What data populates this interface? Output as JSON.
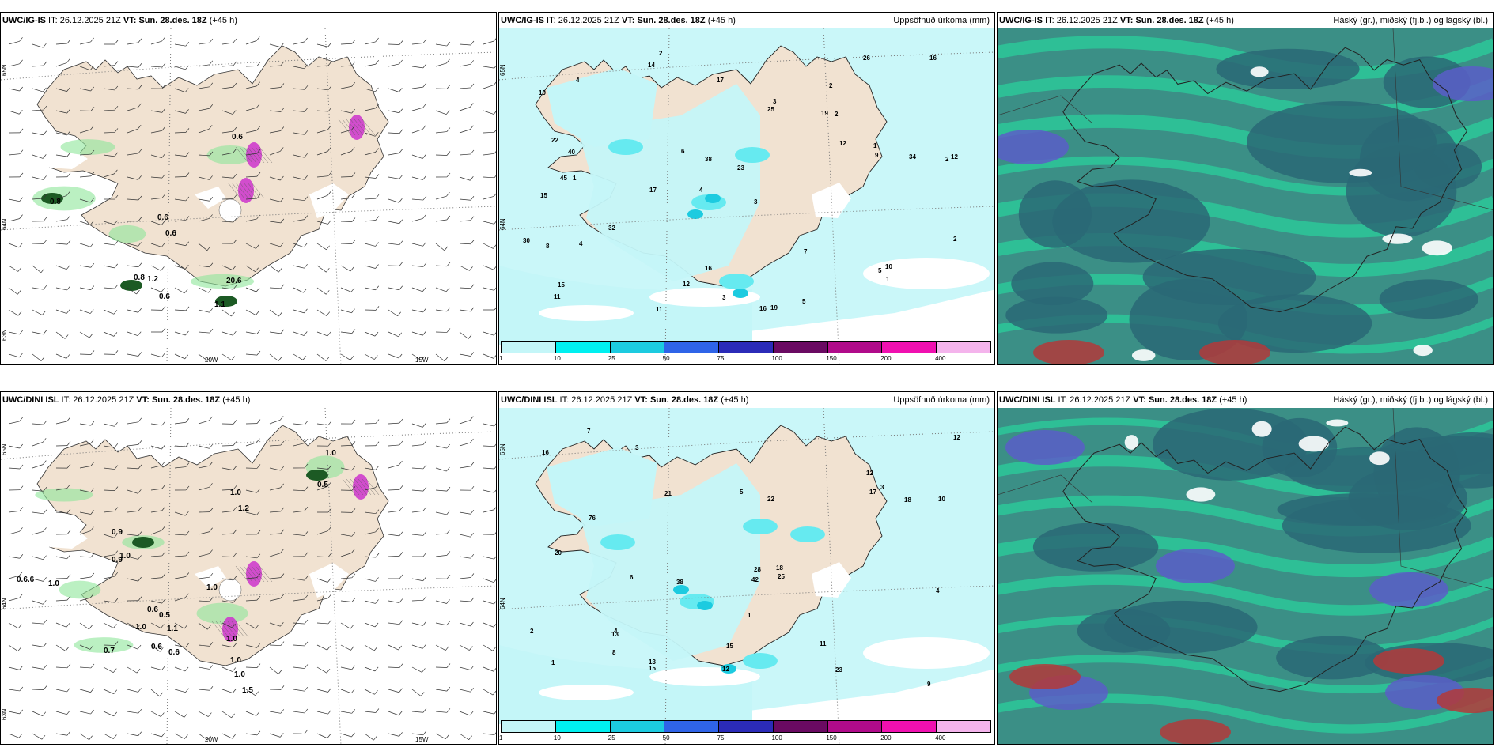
{
  "colors": {
    "land": "#f1e2d1",
    "sea": "#ffffff",
    "precip_light": "#c4f6f8",
    "precip_mid": "#66eaf0",
    "precip_high": "#1ccbe0",
    "cloud_dark": "#2a6876",
    "cloud_mid": "#3b8f86",
    "cloud_green": "#29d39c",
    "cloud_blue": "#5a5ec8",
    "cloud_red": "#b33a3a",
    "snow_purple": "#cc33cc",
    "rain_green": "#8ee69a"
  },
  "rows": [
    {
      "model": "UWC/IG-IS",
      "panels": [
        {
          "type": "wind",
          "model_label": "UWC/IG-IS",
          "it_label": " IT: ",
          "it_value": "26.12.2025 21Z",
          "vt_label": " VT: ",
          "vt_value": "Sun. 28.des. 18Z",
          "lead": " (+45 h)",
          "right_title": "",
          "lat_labels": [
            "65N",
            "64N",
            "63N"
          ],
          "lon_labels": [
            "20W",
            "15W"
          ],
          "values": [
            "0.6",
            "0.6",
            "0.6",
            "0.8",
            "1.2",
            "0.6",
            "1.1",
            "20.6",
            "0.8"
          ]
        },
        {
          "type": "precip",
          "model_label": "UWC/IG-IS",
          "it_label": " IT: ",
          "it_value": "26.12.2025 21Z",
          "vt_label": " VT: ",
          "vt_value": "Sun. 28.des. 18Z",
          "lead": " (+45 h)",
          "right_title": "Uppsöfnuð úrkoma (mm)",
          "lat_labels": [
            "65N",
            "64N"
          ],
          "values": [
            "2",
            "2",
            "2",
            "4",
            "3",
            "1",
            "10",
            "19",
            "15",
            "25",
            "23",
            "11",
            "14",
            "17",
            "16",
            "19",
            "16",
            "26",
            "12",
            "32",
            "40",
            "45",
            "12",
            "34",
            "30",
            "22",
            "38",
            "9",
            "10",
            "8",
            "5",
            "3",
            "4",
            "6",
            "7",
            "2",
            "1",
            "12",
            "16",
            "17",
            "15",
            "11",
            "5",
            "4",
            "3",
            "2",
            "1"
          ],
          "colorbar": {
            "colors": [
              "#c4f6f8",
              "#00f0f0",
              "#1ccbe0",
              "#2f64e8",
              "#2b2bb8",
              "#6a0a62",
              "#b00b8a",
              "#f010b0",
              "#f4b4ec"
            ],
            "ticks": [
              "1",
              "10",
              "25",
              "50",
              "75",
              "100",
              "150",
              "200",
              "400"
            ]
          }
        },
        {
          "type": "cloud",
          "model_label": "UWC/IG-IS",
          "it_label": " IT: ",
          "it_value": "26.12.2025 21Z",
          "vt_label": " VT: ",
          "vt_value": "Sun. 28.des. 18Z",
          "lead": " (+45 h)",
          "right_title": "Háský (gr.), miðský (fj.bl.) og lágský (bl.)"
        }
      ]
    },
    {
      "model": "UWC/DINI ISL",
      "panels": [
        {
          "type": "wind",
          "model_label": "UWC/DINI ISL",
          "it_label": " IT: ",
          "it_value": "26.12.2025 21Z",
          "vt_label": " VT: ",
          "vt_value": "Sun. 28.des. 18Z",
          "lead": " (+45 h)",
          "right_title": "",
          "lat_labels": [
            "65N",
            "64N",
            "63N"
          ],
          "lon_labels": [
            "20W",
            "15W"
          ],
          "values": [
            "1.0",
            "0.5",
            "1.0",
            "0.9",
            "1.0",
            "0.6",
            "0.5",
            "1.2",
            "0.9",
            "1.0",
            "0.7",
            "1.0",
            "0.6",
            "1.1",
            "0.6",
            "1.0",
            "1.0",
            "0.6.6",
            "1.0",
            "1.0",
            "1.5"
          ]
        },
        {
          "type": "precip",
          "model_label": "UWC/DINI ISL",
          "it_label": " IT: ",
          "it_value": "26.12.2025 21Z",
          "vt_label": " VT: ",
          "vt_value": "Sun. 28.des. 18Z",
          "lead": " (+45 h)",
          "right_title": "Uppsöfnuð úrkoma (mm)",
          "lat_labels": [
            "65N",
            "64N"
          ],
          "values": [
            "1",
            "3",
            "4",
            "12",
            "17",
            "13",
            "10",
            "12",
            "15",
            "18",
            "23",
            "16",
            "22",
            "21",
            "13",
            "38",
            "76",
            "42",
            "25",
            "28",
            "20",
            "18",
            "12",
            "15",
            "11",
            "6",
            "5",
            "4",
            "3",
            "2",
            "1",
            "7",
            "8",
            "9"
          ],
          "colorbar": {
            "colors": [
              "#c4f6f8",
              "#00f0f0",
              "#1ccbe0",
              "#2f64e8",
              "#2b2bb8",
              "#6a0a62",
              "#b00b8a",
              "#f010b0",
              "#f4b4ec"
            ],
            "ticks": [
              "1",
              "10",
              "25",
              "50",
              "75",
              "100",
              "150",
              "200",
              "400"
            ]
          }
        },
        {
          "type": "cloud",
          "model_label": "UWC/DINI ISL",
          "it_label": " IT: ",
          "it_value": "26.12.2025 21Z",
          "vt_label": " VT: ",
          "vt_value": "Sun. 28.des. 18Z",
          "lead": " (+45 h)",
          "right_title": "Háský (gr.), miðský (fj.bl.) og lágský (bl.)"
        }
      ]
    }
  ]
}
